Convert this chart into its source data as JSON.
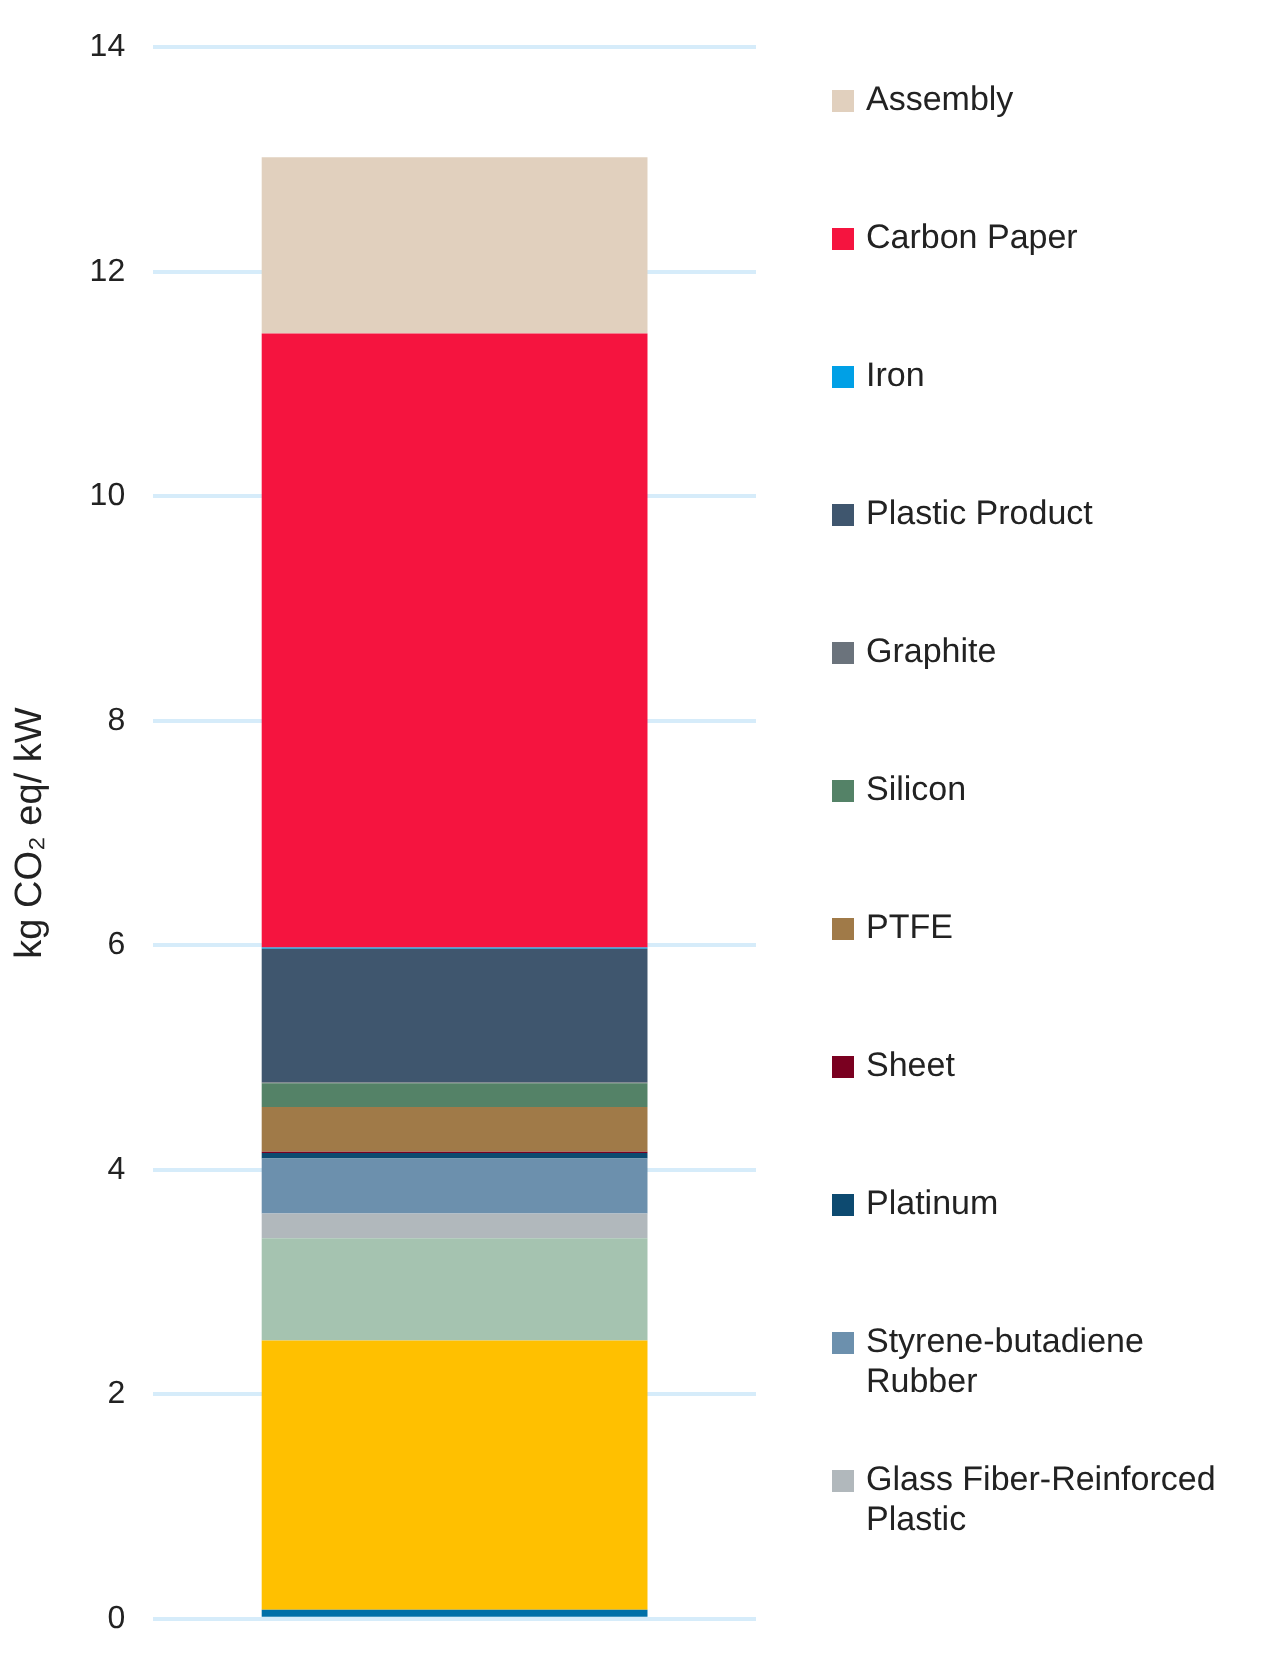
{
  "chart_data": {
    "type": "bar",
    "stacked": true,
    "ylabel": "kg CO₂ eq/ kW",
    "categories": [
      null
    ],
    "series": [
      {
        "color": "#0070a8",
        "values": [
          0.08
        ]
      },
      {
        "color": "#ffc000",
        "values": [
          2.4
        ]
      },
      {
        "color": "#a5c3b0",
        "values": [
          0.91
        ]
      },
      {
        "name": "Glass Fiber-Reinforced Plastic",
        "color": "#b1b8bc",
        "values": [
          0.22
        ]
      },
      {
        "name": "Styrene-butadiene Rubber",
        "color": "#6c90ad",
        "values": [
          0.49
        ]
      },
      {
        "name": "Platinum",
        "color": "#0d4a70",
        "values": [
          0.05
        ]
      },
      {
        "name": "Sheet",
        "color": "#7a0020",
        "values": [
          0.01
        ]
      },
      {
        "name": "PTFE",
        "color": "#a07a48",
        "values": [
          0.4
        ]
      },
      {
        "name": "Silicon",
        "color": "#548267",
        "values": [
          0.21
        ]
      },
      {
        "name": "Graphite",
        "color": "#6b737c",
        "values": [
          0.01
        ]
      },
      {
        "name": "Plastic Product",
        "color": "#3f566e",
        "values": [
          1.19
        ]
      },
      {
        "name": "Iron",
        "color": "#00a0e6",
        "values": [
          0.01
        ]
      },
      {
        "name": "Carbon Paper",
        "color": "#f5143f",
        "values": [
          5.47
        ]
      },
      {
        "name": "Assembly",
        "color": "#e1d0be",
        "values": [
          1.57
        ]
      }
    ],
    "ylim": [
      0,
      14
    ],
    "yticks": [
      0,
      2,
      4,
      6,
      8,
      10,
      12,
      14
    ],
    "grid": true,
    "legend": "right"
  }
}
